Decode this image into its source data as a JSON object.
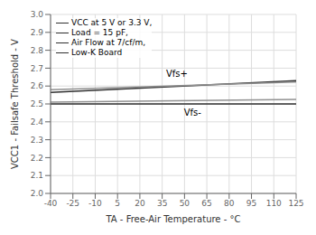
{
  "chart_data": {
    "type": "line",
    "x_label": "TA - Free-Air Temperature - °C",
    "y_label": "VCC1 - Failsafe Threshold - V",
    "x": [
      -40,
      125
    ],
    "series": [
      {
        "color": "#303030",
        "values": [
          2.565,
          2.63
        ]
      },
      {
        "color": "#909090",
        "values": [
          2.58,
          2.622
        ]
      },
      {
        "color": "#303030",
        "values": [
          2.5,
          2.5
        ]
      },
      {
        "color": "#909090",
        "values": [
          2.51,
          2.525
        ]
      }
    ],
    "xlim": [
      -40,
      125
    ],
    "ylim": [
      2.0,
      3.0
    ],
    "xticks": [
      -40,
      -25,
      -10,
      5,
      20,
      35,
      50,
      65,
      80,
      95,
      110,
      125
    ],
    "yticks": [
      {
        "value": 2.0,
        "label": "2.0"
      },
      2.1,
      2.2,
      2.3,
      2.4,
      2.5,
      2.6,
      2.7,
      2.8,
      2.9,
      {
        "value": 3.0,
        "label": "3.0"
      }
    ],
    "grid": true,
    "annotations": [
      {
        "text": "Vfs+",
        "x": 37,
        "y": 2.67
      },
      {
        "text": "Vfs-",
        "x": 49,
        "y": 2.453
      },
      {
        "text": "VCC at 5 V or 3.3 V,"
      },
      {
        "text": "Load = 15 pF,"
      },
      {
        "text": "Air Flow at 7/cf/m,"
      },
      {
        "text": "Low-K Board"
      }
    ]
  }
}
